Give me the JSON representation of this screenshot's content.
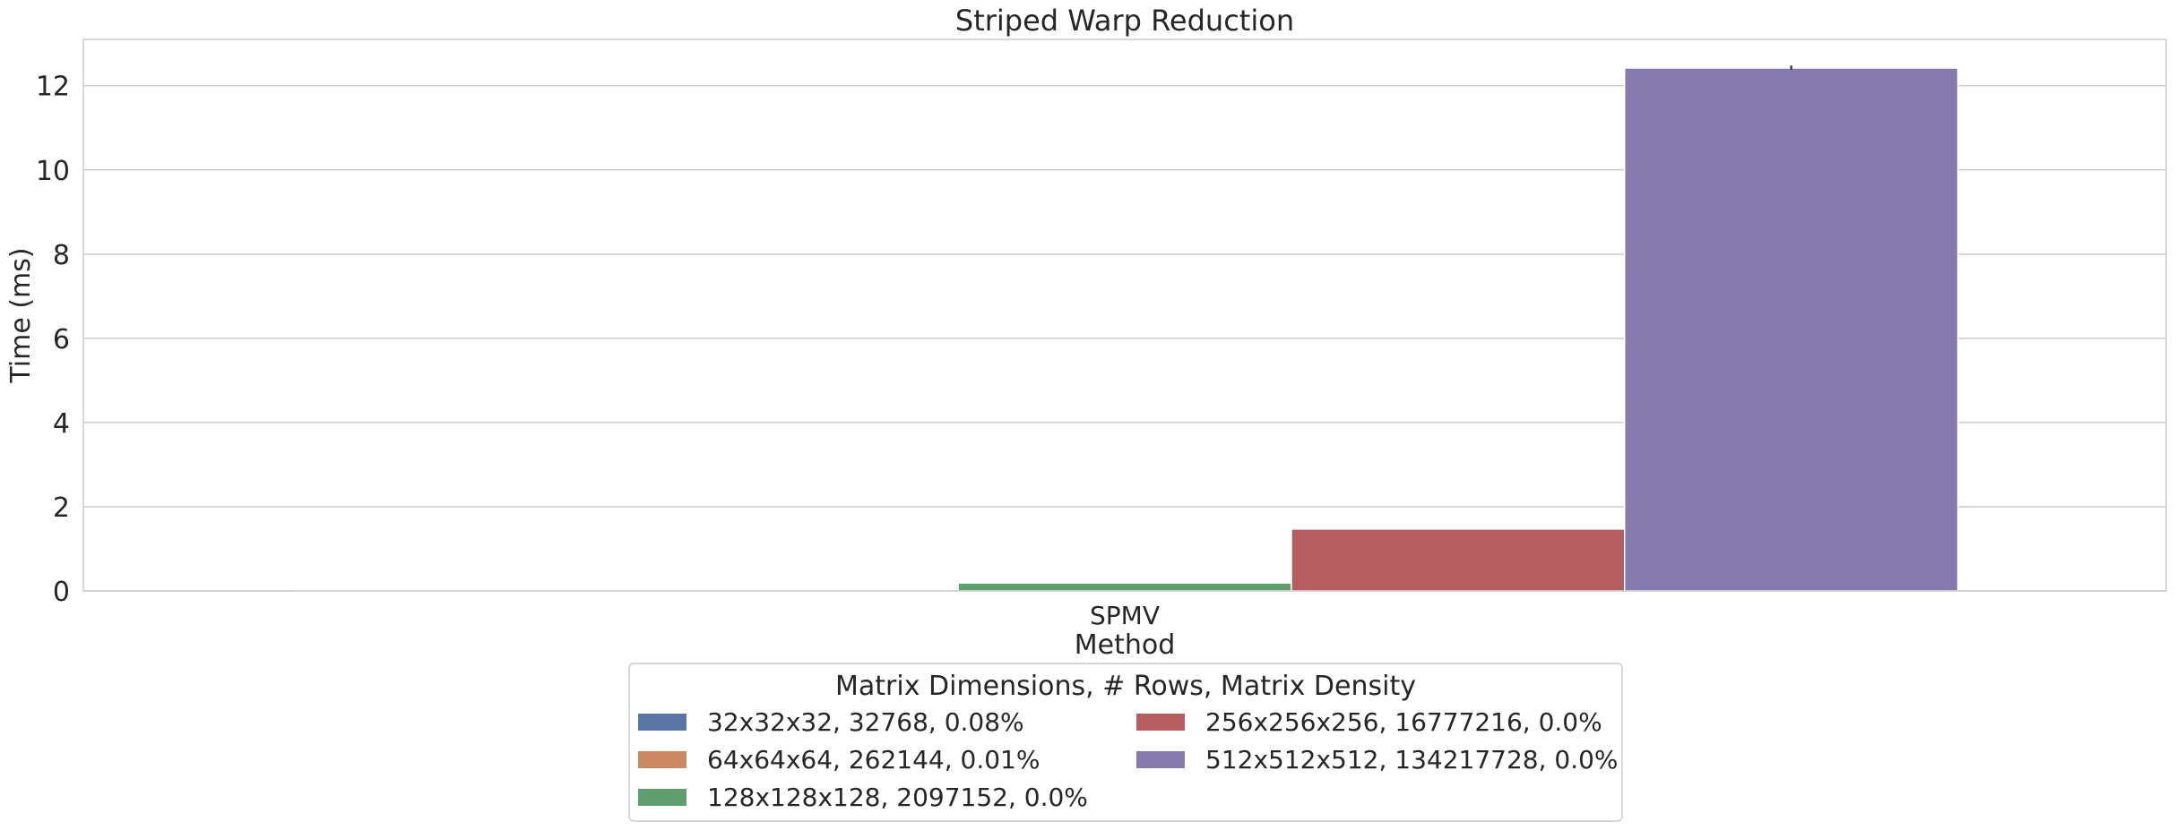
{
  "chart_data": {
    "type": "bar",
    "title": "Striped Warp Reduction",
    "xlabel": "Method",
    "ylabel": "Time (ms)",
    "categories": [
      "SPMV"
    ],
    "ylim": [
      0,
      13.1
    ],
    "yticks": [
      0,
      2,
      4,
      6,
      8,
      10,
      12
    ],
    "grid": true,
    "legend_title": "Matrix Dimensions, # Rows, Matrix Density",
    "legend_position": "bottom-center",
    "series": [
      {
        "name": "32x32x32, 32768, 0.08%",
        "values": [
          0.004
        ],
        "color": "#5975a4"
      },
      {
        "name": "64x64x64, 262144, 0.01%",
        "values": [
          0.02
        ],
        "color": "#cc8963"
      },
      {
        "name": "128x128x128, 2097152, 0.0%",
        "values": [
          0.19
        ],
        "color": "#5f9e6e"
      },
      {
        "name": "256x256x256, 16777216, 0.0%",
        "values": [
          1.47
        ],
        "color": "#b55d60"
      },
      {
        "name": "512x512x512, 134217728, 0.0%",
        "values": [
          12.42
        ],
        "color": "#857aab"
      }
    ],
    "error_bars": [
      {
        "series": "512x512x512, 134217728, 0.0%",
        "low": 12.38,
        "high": 12.48
      }
    ]
  }
}
